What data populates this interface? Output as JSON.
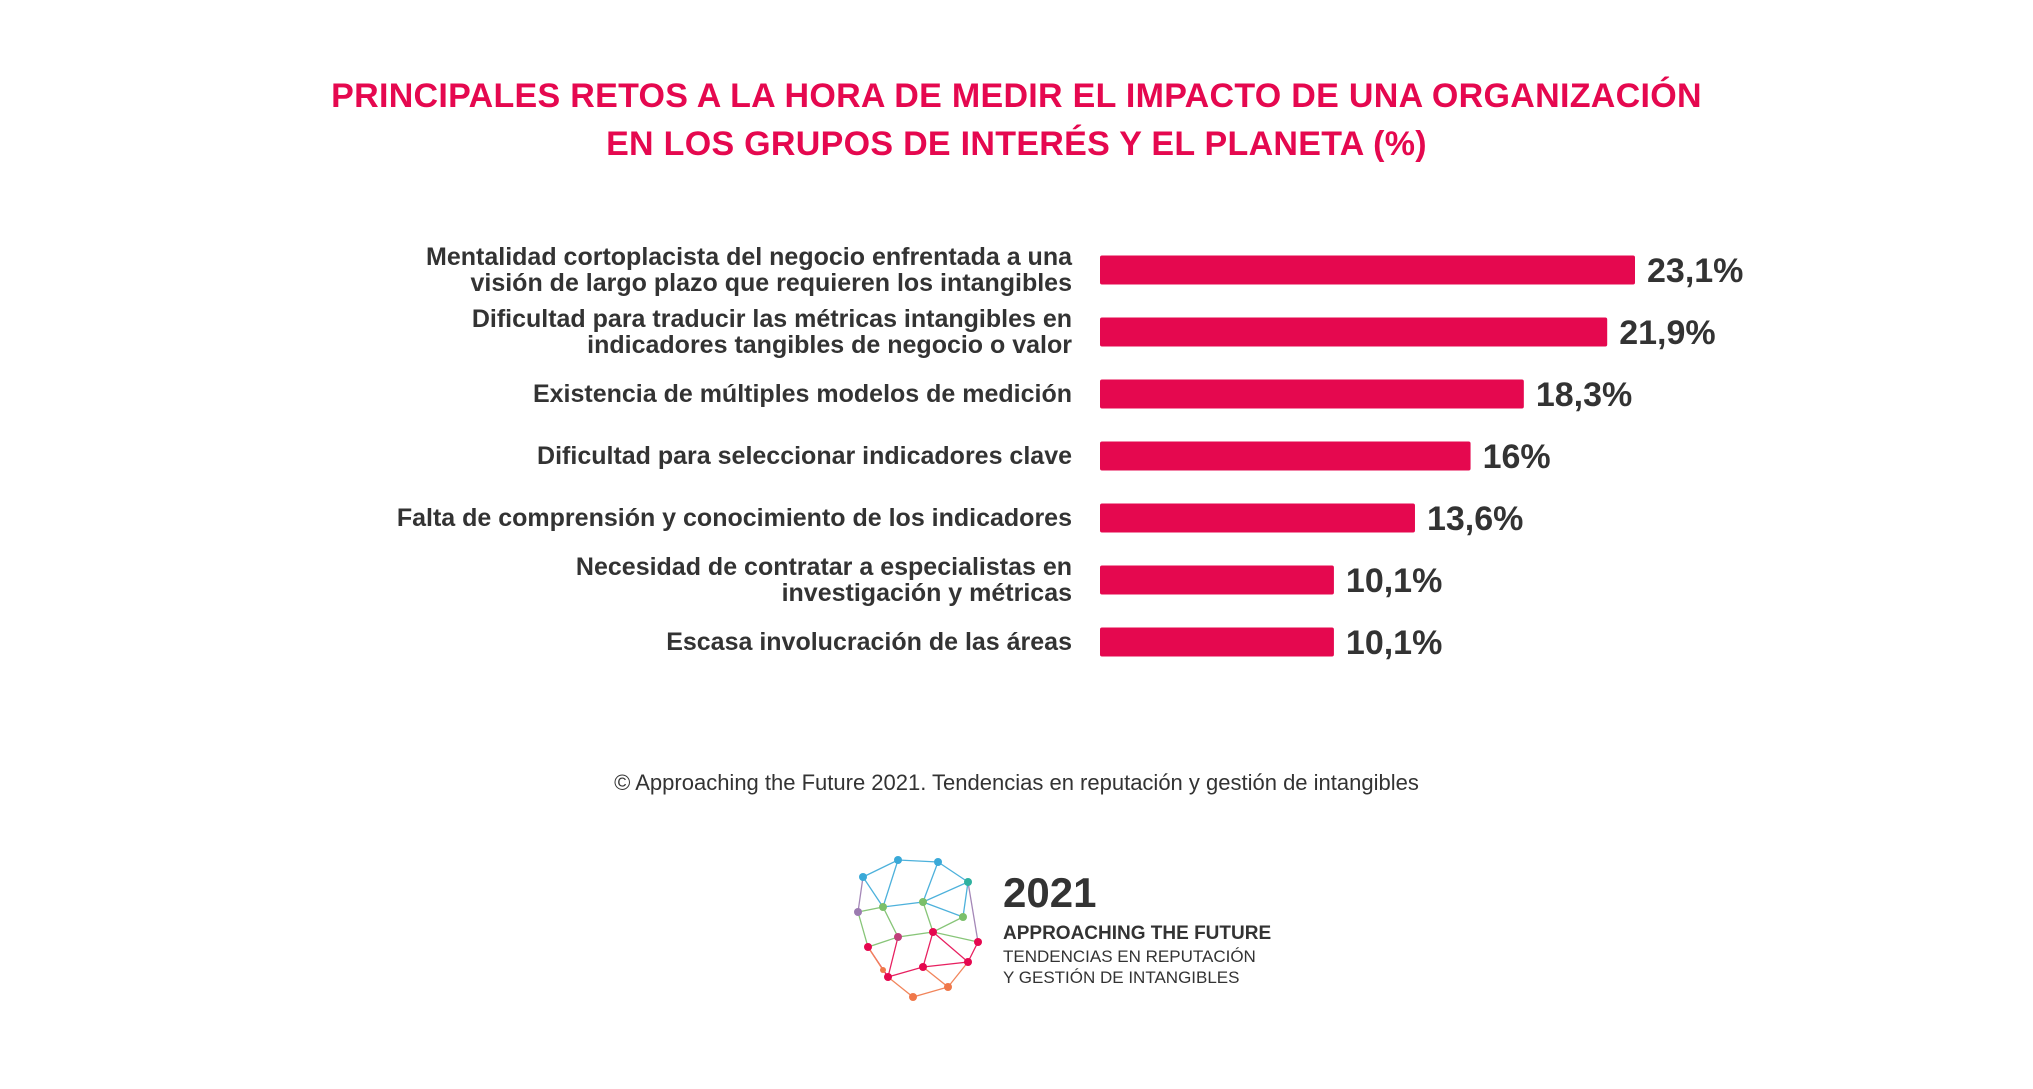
{
  "title_lines": [
    "PRINCIPALES RETOS A LA HORA DE MEDIR EL IMPACTO DE UNA ORGANIZACIÓN",
    "EN LOS GRUPOS DE INTERÉS Y EL PLANETA (%)"
  ],
  "source": "© Approaching the Future 2021. Tendencias en reputación y gestión de intangibles",
  "logo": {
    "year": "2021",
    "name": "APPROACHING THE FUTURE",
    "sub_line1": "TENDENCIAS EN REPUTACIÓN",
    "sub_line2": "Y GESTIÓN DE INTANGIBLES"
  },
  "colors": {
    "bar": "#e5084f",
    "title": "#e5084f",
    "text": "#333333"
  },
  "chart_data": {
    "type": "bar",
    "orientation": "horizontal",
    "title": "PRINCIPALES RETOS A LA HORA DE MEDIR EL IMPACTO DE UNA ORGANIZACIÓN EN LOS GRUPOS DE INTERÉS Y EL PLANETA (%)",
    "categories": [
      [
        "Mentalidad cortoplacista del negocio enfrentada a una",
        "visión de largo plazo que requieren los intangibles"
      ],
      [
        "Dificultad para traducir las métricas intangibles en",
        "indicadores tangibles de negocio o valor"
      ],
      [
        "Existencia de múltiples modelos de medición"
      ],
      [
        "Dificultad para seleccionar indicadores clave"
      ],
      [
        "Falta de comprensión y conocimiento de los indicadores"
      ],
      [
        "Necesidad de contratar a especialistas en",
        "investigación y métricas"
      ],
      [
        "Escasa involucración de las áreas"
      ]
    ],
    "values": [
      23.1,
      21.9,
      18.3,
      16,
      13.6,
      10.1,
      10.1
    ],
    "value_labels": [
      "23,1%",
      "21,9%",
      "18,3%",
      "16%",
      "13,6%",
      "10,1%",
      "10,1%"
    ],
    "xlim": [
      0,
      23.1
    ],
    "grid": false,
    "legend": "none"
  }
}
